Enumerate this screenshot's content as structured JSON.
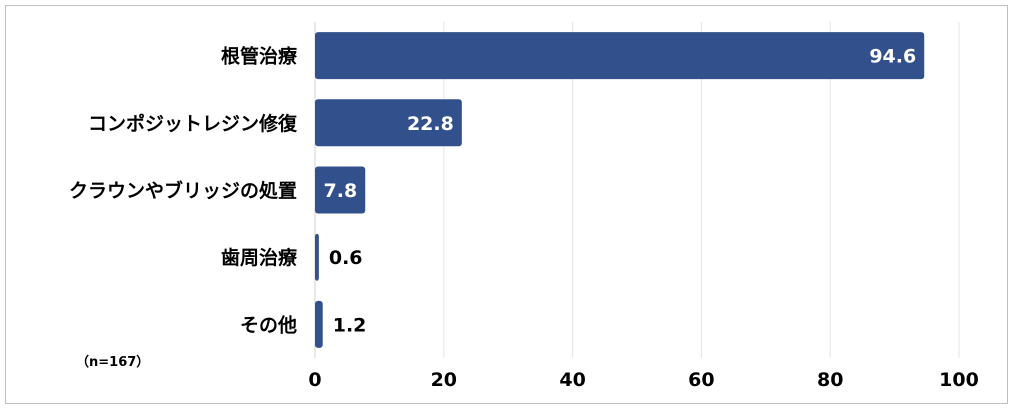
{
  "chart_data": {
    "type": "bar",
    "orientation": "horizontal",
    "categories": [
      "根管治療",
      "コンポジットレジン修復",
      "クラウンやブリッジの処置",
      "歯周治療",
      "その他"
    ],
    "values": [
      94.6,
      22.8,
      7.8,
      0.6,
      1.2
    ],
    "value_labels": [
      "94.6",
      "22.8",
      "7.8",
      "0.6",
      "1.2"
    ],
    "xlim": [
      0,
      100
    ],
    "x_ticks": [
      "0",
      "20",
      "40",
      "60",
      "80",
      "100"
    ],
    "grid": "vertical",
    "bar_color": "#32508c",
    "title": "",
    "xlabel": "",
    "ylabel": ""
  },
  "note": "（n=167）"
}
